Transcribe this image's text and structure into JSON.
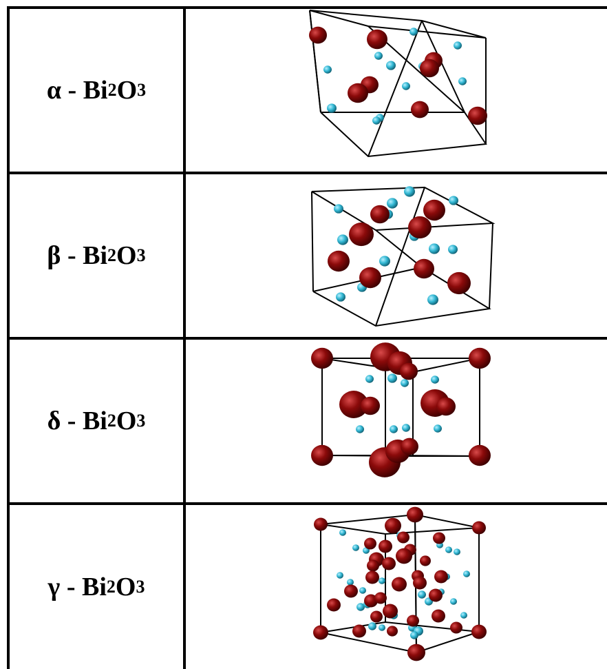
{
  "rows": [
    {
      "greek": "α",
      "sep": " - ",
      "base": "Bi",
      "sub1": "2",
      "mid": "O",
      "sub2": "3"
    },
    {
      "greek": "β",
      "sep": " - ",
      "base": "Bi",
      "sub1": "2",
      "mid": "O",
      "sub2": "3"
    },
    {
      "greek": "δ",
      "sep": " - ",
      "base": "Bi",
      "sub1": "2",
      "mid": "O",
      "sub2": "3"
    },
    {
      "greek": "γ",
      "sep": " - ",
      "base": "Bi",
      "sub1": "2",
      "mid": "O",
      "sub2": "3"
    }
  ],
  "colors": {
    "bismuth": "#8b0a0a",
    "oxygen": "#33b8d4",
    "frame": "#000000",
    "border": "#000000"
  }
}
